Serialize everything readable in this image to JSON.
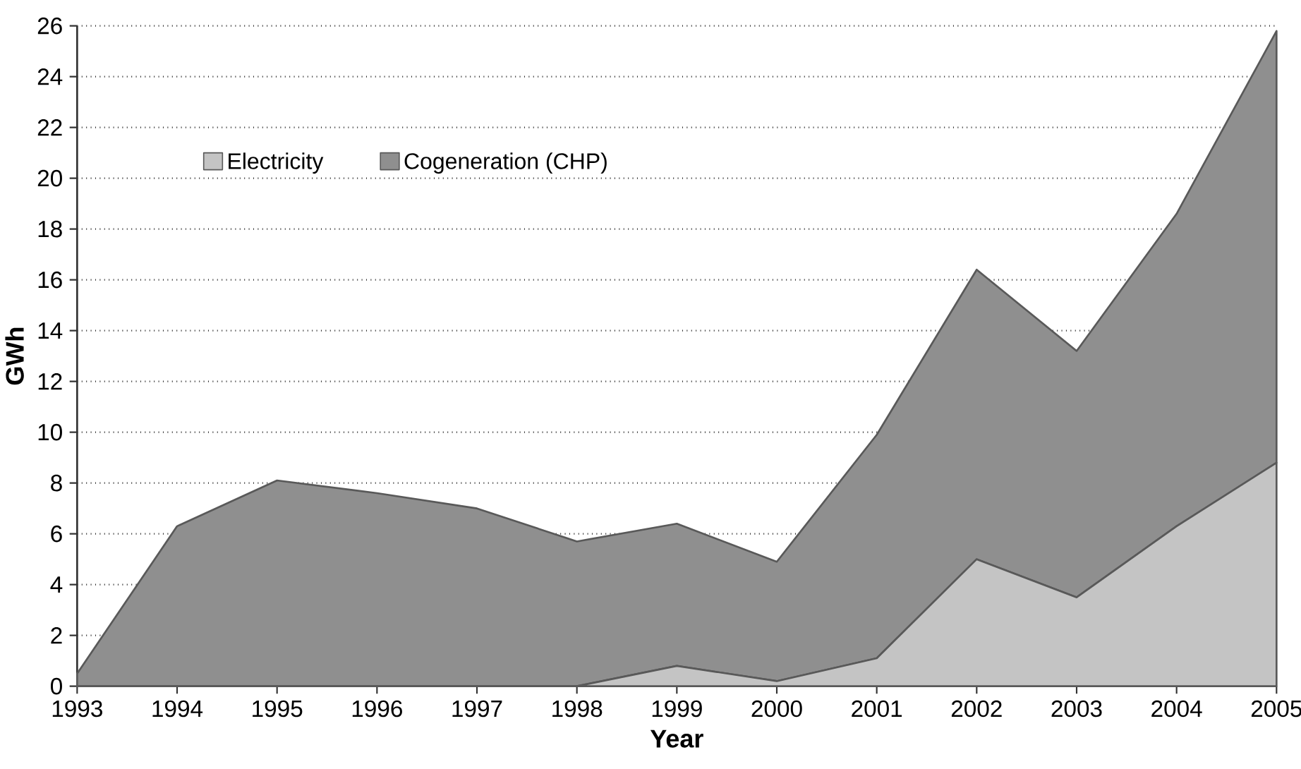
{
  "chart_data": {
    "type": "area",
    "stacked": true,
    "xlabel": "Year",
    "ylabel": "GWh",
    "categories": [
      "1993",
      "1994",
      "1995",
      "1996",
      "1997",
      "1998",
      "1999",
      "2000",
      "2001",
      "2002",
      "2003",
      "2004",
      "2005"
    ],
    "series": [
      {
        "name": "Electricity",
        "color": "#c4c4c4",
        "values": [
          0,
          0,
          0,
          0,
          0,
          0,
          0.8,
          0.2,
          1.1,
          5.0,
          3.5,
          6.3,
          8.8
        ]
      },
      {
        "name": "Cogeneration (CHP)",
        "color": "#8f8f8f",
        "values": [
          0.5,
          6.3,
          8.1,
          7.6,
          7.0,
          5.7,
          5.6,
          4.7,
          8.8,
          11.4,
          9.7,
          12.3,
          17.0
        ]
      }
    ],
    "ylim": [
      0,
      26
    ],
    "yticks": [
      0,
      2,
      4,
      6,
      8,
      10,
      12,
      14,
      16,
      18,
      20,
      22,
      24,
      26
    ],
    "grid": "y",
    "legend": "top left"
  }
}
